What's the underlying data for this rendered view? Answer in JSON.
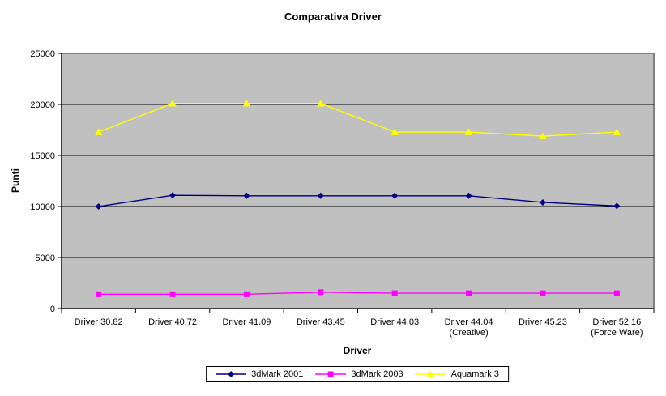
{
  "chart_data": {
    "type": "line",
    "title": "Comparativa Driver",
    "xlabel": "Driver",
    "ylabel": "Punti",
    "ylim": [
      0,
      25000
    ],
    "yticks": [
      0,
      5000,
      10000,
      15000,
      20000,
      25000
    ],
    "grid": true,
    "legend_position": "bottom",
    "categories": [
      "Driver 30.82",
      "Driver 40.72",
      "Driver 41.09",
      "Driver 43.45",
      "Driver 44.03",
      "Driver 44.04 (Creative)",
      "Driver 45.23",
      "Driver 52.16 (Force Ware)"
    ],
    "series": [
      {
        "name": "3dMark 2001",
        "color": "#000080",
        "marker": "diamond",
        "values": [
          10000,
          11100,
          11050,
          11050,
          11050,
          11050,
          10400,
          10050
        ]
      },
      {
        "name": "3dMark 2003",
        "color": "#FF00FF",
        "marker": "square",
        "values": [
          1400,
          1400,
          1400,
          1600,
          1500,
          1500,
          1500,
          1500
        ]
      },
      {
        "name": "Aquamark 3",
        "color": "#FFFF00",
        "marker": "triangle",
        "values": [
          17300,
          20100,
          20100,
          20100,
          17300,
          17300,
          16900,
          17300
        ]
      }
    ],
    "colors": {
      "plot_background": "#C0C0C0",
      "plot_border": "#808080",
      "gridline": "#000000",
      "axis": "#000000",
      "text": "#000000",
      "chart_background": "#FFFFFF"
    }
  }
}
